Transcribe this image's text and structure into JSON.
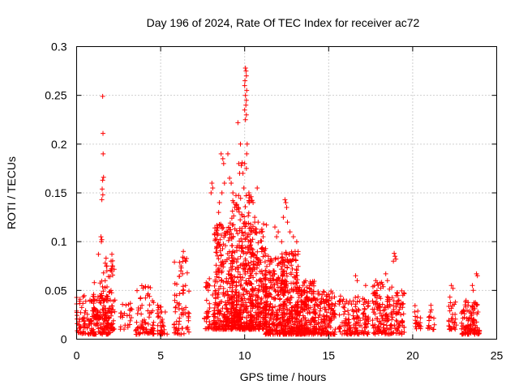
{
  "chart_data": {
    "type": "scatter",
    "title": "Day 196 of 2024, Rate Of TEC Index for receiver ac72",
    "xlabel": "GPS time / hours",
    "ylabel": "ROTI / TECUs",
    "xlim": [
      0,
      25
    ],
    "ylim": [
      0,
      0.3
    ],
    "xticks": [
      0,
      5,
      10,
      15,
      20,
      25
    ],
    "xtick_labels": [
      "0",
      "5",
      "10",
      "15",
      "20",
      "25"
    ],
    "yticks": [
      0,
      0.05,
      0.1,
      0.15,
      0.2,
      0.25,
      0.3
    ],
    "ytick_labels": [
      "0",
      "0.05",
      "0.1",
      "0.15",
      "0.2",
      "0.25",
      "0.3"
    ],
    "grid": true,
    "marker": "+",
    "color": "#ff0000",
    "clusters": [
      {
        "x": [
          0.0,
          2.2
        ],
        "y": [
          0.005,
          0.045
        ],
        "n": 190
      },
      {
        "x": [
          1.0,
          1.8
        ],
        "y": [
          0.02,
          0.06
        ],
        "n": 40
      },
      {
        "x": [
          1.7,
          2.3
        ],
        "y": [
          0.01,
          0.085
        ],
        "n": 45
      },
      {
        "x": [
          2.6,
          3.3
        ],
        "y": [
          0.01,
          0.04
        ],
        "n": 25
      },
      {
        "x": [
          3.5,
          4.6
        ],
        "y": [
          0.005,
          0.055
        ],
        "n": 80
      },
      {
        "x": [
          4.8,
          5.4
        ],
        "y": [
          0.005,
          0.035
        ],
        "n": 35
      },
      {
        "x": [
          5.8,
          6.7
        ],
        "y": [
          0.005,
          0.085
        ],
        "n": 70
      },
      {
        "x": [
          7.6,
          8.3
        ],
        "y": [
          0.01,
          0.06
        ],
        "n": 50
      },
      {
        "x": [
          8.2,
          9.3
        ],
        "y": [
          0.01,
          0.12
        ],
        "n": 260
      },
      {
        "x": [
          9.2,
          10.5
        ],
        "y": [
          0.01,
          0.15
        ],
        "n": 380
      },
      {
        "x": [
          10.3,
          11.3
        ],
        "y": [
          0.01,
          0.12
        ],
        "n": 230
      },
      {
        "x": [
          11.2,
          12.4
        ],
        "y": [
          0.005,
          0.085
        ],
        "n": 240
      },
      {
        "x": [
          12.2,
          13.2
        ],
        "y": [
          0.005,
          0.09
        ],
        "n": 230
      },
      {
        "x": [
          13.1,
          14.2
        ],
        "y": [
          0.005,
          0.06
        ],
        "n": 220
      },
      {
        "x": [
          14.1,
          15.4
        ],
        "y": [
          0.005,
          0.05
        ],
        "n": 170
      },
      {
        "x": [
          15.6,
          17.4
        ],
        "y": [
          0.005,
          0.045
        ],
        "n": 150
      },
      {
        "x": [
          17.6,
          19.5
        ],
        "y": [
          0.005,
          0.06
        ],
        "n": 200
      },
      {
        "x": [
          20.1,
          20.5
        ],
        "y": [
          0.01,
          0.035
        ],
        "n": 20
      },
      {
        "x": [
          20.9,
          21.3
        ],
        "y": [
          0.01,
          0.035
        ],
        "n": 18
      },
      {
        "x": [
          22.1,
          22.6
        ],
        "y": [
          0.01,
          0.05
        ],
        "n": 30
      },
      {
        "x": [
          22.9,
          24.0
        ],
        "y": [
          0.005,
          0.04
        ],
        "n": 110
      }
    ],
    "points": [
      [
        1.55,
        0.249
      ],
      [
        1.57,
        0.211
      ],
      [
        1.58,
        0.19
      ],
      [
        1.6,
        0.166
      ],
      [
        1.55,
        0.163
      ],
      [
        1.52,
        0.154
      ],
      [
        1.56,
        0.148
      ],
      [
        1.5,
        0.143
      ],
      [
        1.45,
        0.105
      ],
      [
        1.5,
        0.102
      ],
      [
        1.47,
        0.1
      ],
      [
        1.3,
        0.087
      ],
      [
        2.1,
        0.087
      ],
      [
        2.05,
        0.08
      ],
      [
        2.15,
        0.075
      ],
      [
        1.75,
        0.083
      ],
      [
        1.8,
        0.07
      ],
      [
        1.6,
        0.068
      ],
      [
        1.7,
        0.06
      ],
      [
        6.35,
        0.09
      ],
      [
        6.4,
        0.083
      ],
      [
        6.2,
        0.07
      ],
      [
        6.5,
        0.08
      ],
      [
        8.05,
        0.16
      ],
      [
        8.1,
        0.155
      ],
      [
        8.0,
        0.15
      ],
      [
        7.9,
        0.062
      ],
      [
        8.6,
        0.19
      ],
      [
        8.7,
        0.185
      ],
      [
        8.75,
        0.18
      ],
      [
        8.8,
        0.16
      ],
      [
        8.65,
        0.15
      ],
      [
        8.5,
        0.14
      ],
      [
        8.45,
        0.13
      ],
      [
        9.0,
        0.19
      ],
      [
        9.1,
        0.165
      ],
      [
        9.2,
        0.16
      ],
      [
        9.3,
        0.15
      ],
      [
        9.35,
        0.14
      ],
      [
        9.6,
        0.222
      ],
      [
        9.75,
        0.2
      ],
      [
        9.65,
        0.18
      ],
      [
        9.8,
        0.178
      ],
      [
        9.85,
        0.181
      ],
      [
        9.7,
        0.17
      ],
      [
        9.9,
        0.17
      ],
      [
        10.05,
        0.278
      ],
      [
        10.08,
        0.275
      ],
      [
        10.1,
        0.27
      ],
      [
        10.02,
        0.265
      ],
      [
        10.0,
        0.26
      ],
      [
        10.12,
        0.255
      ],
      [
        10.05,
        0.25
      ],
      [
        10.1,
        0.245
      ],
      [
        10.07,
        0.24
      ],
      [
        10.0,
        0.235
      ],
      [
        10.1,
        0.23
      ],
      [
        10.05,
        0.225
      ],
      [
        10.15,
        0.2
      ],
      [
        10.12,
        0.19
      ],
      [
        10.0,
        0.18
      ],
      [
        10.1,
        0.175
      ],
      [
        9.95,
        0.155
      ],
      [
        10.25,
        0.15
      ],
      [
        10.3,
        0.145
      ],
      [
        10.5,
        0.14
      ],
      [
        10.75,
        0.155
      ],
      [
        10.6,
        0.125
      ],
      [
        10.8,
        0.12
      ],
      [
        10.9,
        0.11
      ],
      [
        11.1,
        0.105
      ],
      [
        12.4,
        0.143
      ],
      [
        12.45,
        0.14
      ],
      [
        12.5,
        0.135
      ],
      [
        12.3,
        0.125
      ],
      [
        12.55,
        0.12
      ],
      [
        11.8,
        0.115
      ],
      [
        12.0,
        0.11
      ],
      [
        11.9,
        0.105
      ],
      [
        12.2,
        0.1
      ],
      [
        12.7,
        0.11
      ],
      [
        12.9,
        0.105
      ],
      [
        13.1,
        0.1
      ],
      [
        13.0,
        0.09
      ],
      [
        12.8,
        0.088
      ],
      [
        16.6,
        0.065
      ],
      [
        16.7,
        0.06
      ],
      [
        17.2,
        0.055
      ],
      [
        17.8,
        0.06
      ],
      [
        18.4,
        0.067
      ],
      [
        18.5,
        0.06
      ],
      [
        18.9,
        0.088
      ],
      [
        18.95,
        0.085
      ],
      [
        19.0,
        0.082
      ],
      [
        18.85,
        0.08
      ],
      [
        22.3,
        0.055
      ],
      [
        22.4,
        0.052
      ],
      [
        23.55,
        0.055
      ],
      [
        23.8,
        0.067
      ],
      [
        23.85,
        0.065
      ],
      [
        23.6,
        0.05
      ]
    ]
  }
}
